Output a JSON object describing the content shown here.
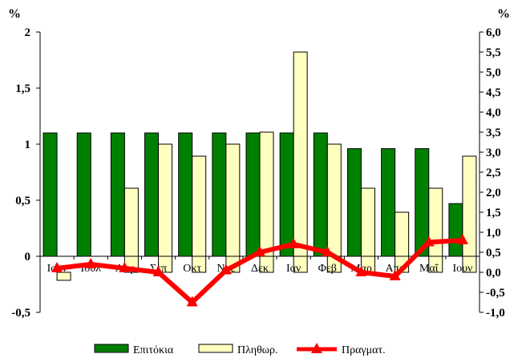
{
  "chart_data": {
    "type": "bar",
    "categories": [
      "Ιουν",
      "Ιουλ",
      "Αυγ",
      "Σεπ",
      "Οκτ",
      "Νοε",
      "Δεκ",
      "Ιαν",
      "Φεβ",
      "Μαρ",
      "Απρ",
      "Μαΐ",
      "Ιουν"
    ],
    "series": [
      {
        "name": "Επιτόκια",
        "axis": "left",
        "type": "bar",
        "color": "#008000",
        "values": [
          1.1,
          1.1,
          1.1,
          1.1,
          1.1,
          1.1,
          1.1,
          1.1,
          1.1,
          0.96,
          0.96,
          0.96,
          0.47
        ]
      },
      {
        "name": "Πληθωρ.",
        "axis": "right",
        "type": "bar",
        "color": "#ffffc0",
        "values": [
          -0.2,
          0.0,
          2.1,
          3.2,
          2.9,
          3.2,
          3.5,
          5.5,
          3.2,
          2.1,
          1.5,
          2.1,
          2.9
        ]
      },
      {
        "name": "Πραγματ.",
        "axis": "right",
        "type": "line",
        "color": "#ff0000",
        "values": [
          0.1,
          0.2,
          0.1,
          0.0,
          -0.75,
          0.05,
          0.5,
          0.7,
          0.5,
          0.0,
          -0.1,
          0.75,
          0.8
        ]
      }
    ],
    "left_axis": {
      "unit": "%",
      "ylim": [
        -0.5,
        2
      ],
      "ticks": [
        {
          "v": 2,
          "label": "2"
        },
        {
          "v": 1.5,
          "label": "1,5"
        },
        {
          "v": 1,
          "label": "1"
        },
        {
          "v": 0.5,
          "label": "0,5"
        },
        {
          "v": 0,
          "label": "0"
        },
        {
          "v": -0.5,
          "label": "-0,5"
        }
      ]
    },
    "right_axis": {
      "unit": "%",
      "ylim": [
        -1,
        6
      ],
      "ticks": [
        {
          "v": 6,
          "label": "6,0"
        },
        {
          "v": 5.5,
          "label": "5,5"
        },
        {
          "v": 5,
          "label": "5,0"
        },
        {
          "v": 4.5,
          "label": "4,5"
        },
        {
          "v": 4,
          "label": "4,0"
        },
        {
          "v": 3.5,
          "label": "3,5"
        },
        {
          "v": 3,
          "label": "3,0"
        },
        {
          "v": 2.5,
          "label": "2,5"
        },
        {
          "v": 2,
          "label": "2,0"
        },
        {
          "v": 1.5,
          "label": "1,5"
        },
        {
          "v": 1,
          "label": "1,0"
        },
        {
          "v": 0.5,
          "label": "0,5"
        },
        {
          "v": 0,
          "label": "0,0"
        },
        {
          "v": -0.5,
          "label": "-0,5"
        },
        {
          "v": -1,
          "label": "-1,0"
        }
      ]
    },
    "legend_position": "bottom",
    "grid": false
  }
}
